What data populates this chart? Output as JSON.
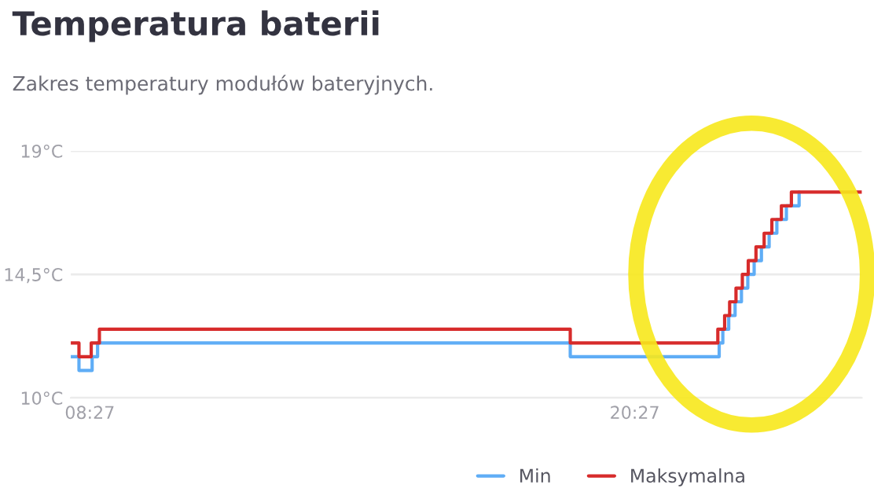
{
  "chart_data": {
    "type": "step",
    "title": "Temperatura baterii",
    "subtitle": "Zakres temperatury modułów bateryjnych.",
    "ylim": [
      10,
      19
    ],
    "yticks": [
      {
        "value": 10,
        "label": "10°C"
      },
      {
        "value": 14.5,
        "label": "14,5°C"
      },
      {
        "value": 19,
        "label": "19°C"
      }
    ],
    "xlim": [
      8.03,
      25.45
    ],
    "xticks": [
      {
        "value": 8.45,
        "label": "08:27"
      },
      {
        "value": 20.45,
        "label": "20:27"
      }
    ],
    "grid": "y",
    "legend": "bottom",
    "series": [
      {
        "name": "Min",
        "color": "#5fadf6",
        "x": [
          8.03,
          8.21,
          8.5,
          8.62,
          19.03,
          22.31,
          22.39,
          22.52,
          22.66,
          22.8,
          22.94,
          23.08,
          23.24,
          23.41,
          23.58,
          23.79,
          24.07
        ],
        "values": [
          11.5,
          11.0,
          11.5,
          12.0,
          11.5,
          12.0,
          12.5,
          13.0,
          13.5,
          14.0,
          14.5,
          15.0,
          15.5,
          16.0,
          16.5,
          17.0,
          17.5
        ]
      },
      {
        "name": "Maksymalna",
        "color": "#d72b2b",
        "x": [
          8.03,
          8.21,
          8.48,
          8.66,
          19.03,
          22.28,
          22.43,
          22.54,
          22.68,
          22.82,
          22.95,
          23.12,
          23.3,
          23.47,
          23.68,
          23.9,
          25.45
        ],
        "values": [
          12.0,
          11.5,
          12.0,
          12.5,
          12.0,
          12.5,
          13.0,
          13.5,
          14.0,
          14.5,
          15.0,
          15.5,
          16.0,
          16.5,
          17.0,
          17.5,
          17.5
        ]
      }
    ]
  }
}
